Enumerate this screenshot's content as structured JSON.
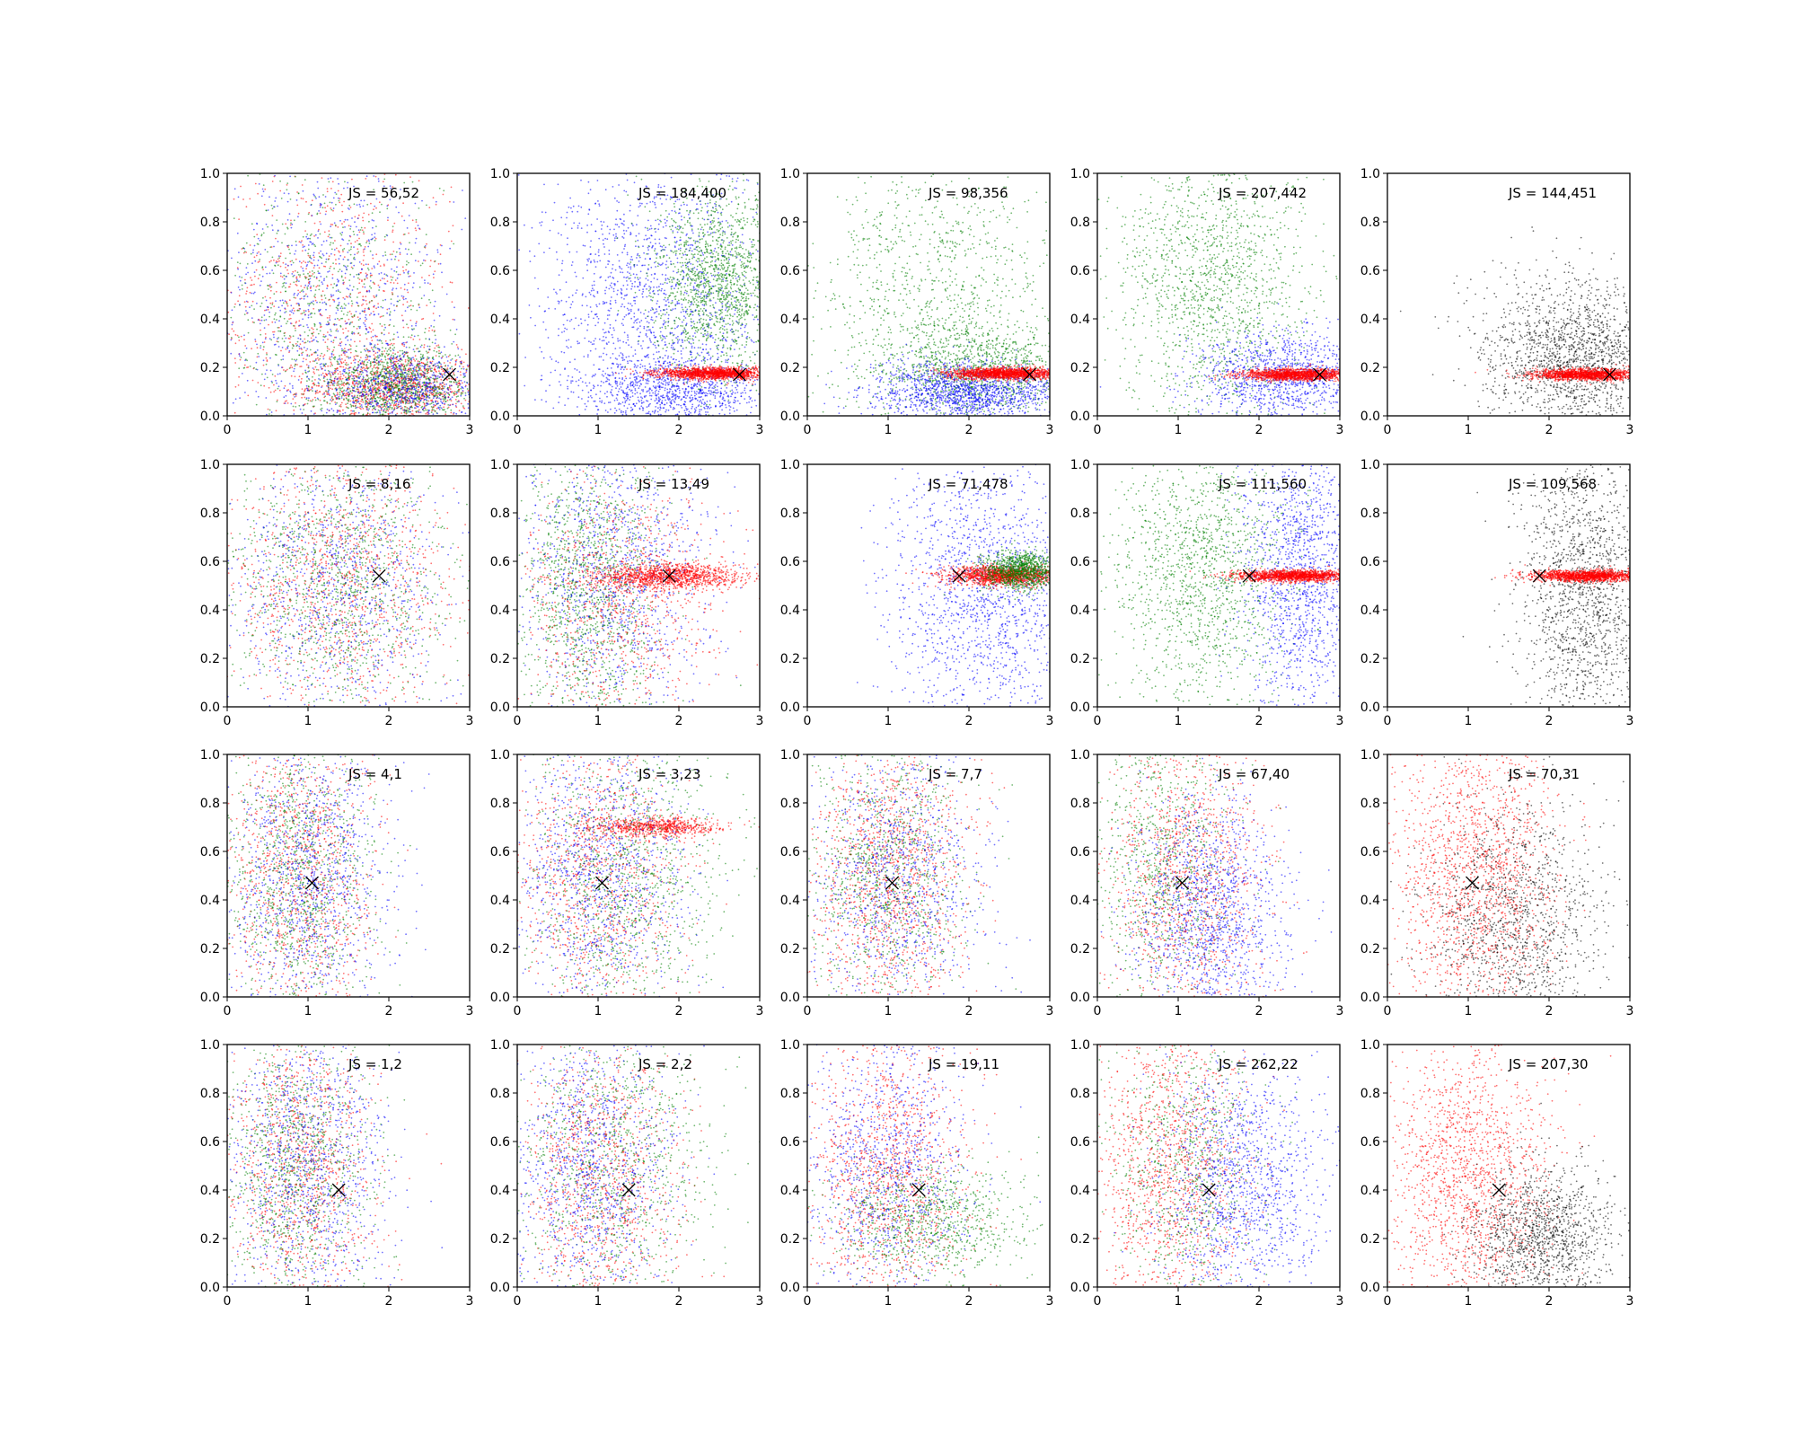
{
  "figure": {
    "rows": 4,
    "cols": 5,
    "xlim": [
      0,
      3
    ],
    "ylim": [
      0,
      1
    ],
    "xticks": [
      "0",
      "1",
      "2",
      "3"
    ],
    "yticks": [
      "0.0",
      "0.2",
      "0.4",
      "0.6",
      "0.8",
      "1.0"
    ],
    "colors": {
      "red": "#ff0000",
      "green": "#008000",
      "blue": "#0000ff",
      "black": "#000000",
      "marker": "#000000",
      "axis": "#000000"
    }
  },
  "chart_data": [
    {
      "type": "scatter",
      "row": 0,
      "col": 0,
      "annotation": "JS = 56,52",
      "marker": {
        "x": 2.75,
        "y": 0.17
      },
      "clouds": [
        {
          "color": "red",
          "n": 1100,
          "cx": 2.1,
          "cy": 0.12,
          "sx": 0.55,
          "sy": 0.07
        },
        {
          "color": "red",
          "n": 900,
          "cx": 1.3,
          "cy": 0.45,
          "sx": 0.75,
          "sy": 0.32
        },
        {
          "color": "green",
          "n": 1100,
          "cx": 2.1,
          "cy": 0.12,
          "sx": 0.5,
          "sy": 0.08
        },
        {
          "color": "green",
          "n": 700,
          "cx": 1.2,
          "cy": 0.45,
          "sx": 0.7,
          "sy": 0.3
        },
        {
          "color": "blue",
          "n": 900,
          "cx": 1.3,
          "cy": 0.45,
          "sx": 0.75,
          "sy": 0.32
        },
        {
          "color": "blue",
          "n": 700,
          "cx": 2.2,
          "cy": 0.12,
          "sx": 0.5,
          "sy": 0.08
        }
      ]
    },
    {
      "type": "scatter",
      "row": 0,
      "col": 1,
      "annotation": "JS = 184,400",
      "marker": {
        "x": 2.75,
        "y": 0.17
      },
      "clouds": [
        {
          "color": "blue",
          "n": 1600,
          "cx": 1.7,
          "cy": 0.45,
          "sx": 0.7,
          "sy": 0.3
        },
        {
          "color": "blue",
          "n": 900,
          "cx": 2.0,
          "cy": 0.1,
          "sx": 0.6,
          "sy": 0.07
        },
        {
          "color": "green",
          "n": 1500,
          "cx": 2.5,
          "cy": 0.55,
          "sx": 0.4,
          "sy": 0.18
        },
        {
          "color": "red",
          "n": 1600,
          "cx": 2.45,
          "cy": 0.175,
          "sx": 0.35,
          "sy": 0.012
        }
      ]
    },
    {
      "type": "scatter",
      "row": 0,
      "col": 2,
      "annotation": "JS = 98,356",
      "marker": {
        "x": 2.75,
        "y": 0.17
      },
      "clouds": [
        {
          "color": "green",
          "n": 1100,
          "cx": 1.6,
          "cy": 0.5,
          "sx": 0.8,
          "sy": 0.3
        },
        {
          "color": "green",
          "n": 1000,
          "cx": 2.1,
          "cy": 0.18,
          "sx": 0.6,
          "sy": 0.1
        },
        {
          "color": "blue",
          "n": 1500,
          "cx": 2.0,
          "cy": 0.1,
          "sx": 0.6,
          "sy": 0.06
        },
        {
          "color": "red",
          "n": 1600,
          "cx": 2.45,
          "cy": 0.175,
          "sx": 0.35,
          "sy": 0.012
        }
      ]
    },
    {
      "type": "scatter",
      "row": 0,
      "col": 3,
      "annotation": "JS = 207,442",
      "marker": {
        "x": 2.75,
        "y": 0.17
      },
      "clouds": [
        {
          "color": "green",
          "n": 1500,
          "cx": 1.4,
          "cy": 0.55,
          "sx": 0.6,
          "sy": 0.3
        },
        {
          "color": "blue",
          "n": 1200,
          "cx": 2.3,
          "cy": 0.15,
          "sx": 0.55,
          "sy": 0.1
        },
        {
          "color": "red",
          "n": 1500,
          "cx": 2.45,
          "cy": 0.17,
          "sx": 0.33,
          "sy": 0.012
        }
      ]
    },
    {
      "type": "scatter",
      "row": 0,
      "col": 4,
      "annotation": "JS = 144,451",
      "marker": {
        "x": 2.75,
        "y": 0.17
      },
      "clouds": [
        {
          "color": "black",
          "n": 1700,
          "cx": 2.3,
          "cy": 0.25,
          "sx": 0.55,
          "sy": 0.16
        },
        {
          "color": "red",
          "n": 1500,
          "cx": 2.45,
          "cy": 0.17,
          "sx": 0.33,
          "sy": 0.012
        }
      ]
    },
    {
      "type": "scatter",
      "row": 1,
      "col": 0,
      "annotation": "JS = 8,16",
      "marker": {
        "x": 1.88,
        "y": 0.54
      },
      "clouds": [
        {
          "color": "red",
          "n": 1200,
          "cx": 1.4,
          "cy": 0.5,
          "sx": 0.7,
          "sy": 0.28
        },
        {
          "color": "green",
          "n": 1200,
          "cx": 1.4,
          "cy": 0.5,
          "sx": 0.7,
          "sy": 0.28
        },
        {
          "color": "blue",
          "n": 1000,
          "cx": 1.3,
          "cy": 0.5,
          "sx": 0.7,
          "sy": 0.3
        }
      ]
    },
    {
      "type": "scatter",
      "row": 1,
      "col": 1,
      "annotation": "JS = 13,49",
      "marker": {
        "x": 1.88,
        "y": 0.54
      },
      "clouds": [
        {
          "color": "green",
          "n": 1400,
          "cx": 0.9,
          "cy": 0.5,
          "sx": 0.45,
          "sy": 0.32
        },
        {
          "color": "blue",
          "n": 1200,
          "cx": 1.2,
          "cy": 0.55,
          "sx": 0.6,
          "sy": 0.3
        },
        {
          "color": "red",
          "n": 900,
          "cx": 1.3,
          "cy": 0.45,
          "sx": 0.6,
          "sy": 0.25
        },
        {
          "color": "red",
          "n": 1200,
          "cx": 1.9,
          "cy": 0.54,
          "sx": 0.45,
          "sy": 0.025
        }
      ]
    },
    {
      "type": "scatter",
      "row": 1,
      "col": 2,
      "annotation": "JS = 71,478",
      "marker": {
        "x": 1.88,
        "y": 0.54
      },
      "clouds": [
        {
          "color": "blue",
          "n": 1600,
          "cx": 2.2,
          "cy": 0.45,
          "sx": 0.6,
          "sy": 0.3
        },
        {
          "color": "red",
          "n": 1400,
          "cx": 2.4,
          "cy": 0.54,
          "sx": 0.35,
          "sy": 0.02
        },
        {
          "color": "green",
          "n": 1100,
          "cx": 2.65,
          "cy": 0.56,
          "sx": 0.25,
          "sy": 0.04
        }
      ]
    },
    {
      "type": "scatter",
      "row": 1,
      "col": 3,
      "annotation": "JS = 111,560",
      "marker": {
        "x": 1.88,
        "y": 0.54
      },
      "clouds": [
        {
          "color": "green",
          "n": 1500,
          "cx": 1.3,
          "cy": 0.55,
          "sx": 0.55,
          "sy": 0.3
        },
        {
          "color": "blue",
          "n": 1400,
          "cx": 2.5,
          "cy": 0.55,
          "sx": 0.35,
          "sy": 0.3
        },
        {
          "color": "red",
          "n": 1500,
          "cx": 2.45,
          "cy": 0.54,
          "sx": 0.35,
          "sy": 0.012
        }
      ]
    },
    {
      "type": "scatter",
      "row": 1,
      "col": 4,
      "annotation": "JS = 109,568",
      "marker": {
        "x": 1.88,
        "y": 0.54
      },
      "clouds": [
        {
          "color": "black",
          "n": 1600,
          "cx": 2.45,
          "cy": 0.45,
          "sx": 0.4,
          "sy": 0.3
        },
        {
          "color": "red",
          "n": 1500,
          "cx": 2.45,
          "cy": 0.54,
          "sx": 0.35,
          "sy": 0.012
        }
      ]
    },
    {
      "type": "scatter",
      "row": 2,
      "col": 0,
      "annotation": "JS = 4,1",
      "marker": {
        "x": 1.05,
        "y": 0.47
      },
      "clouds": [
        {
          "color": "red",
          "n": 1100,
          "cx": 0.9,
          "cy": 0.5,
          "sx": 0.45,
          "sy": 0.3
        },
        {
          "color": "green",
          "n": 1100,
          "cx": 0.9,
          "cy": 0.5,
          "sx": 0.45,
          "sy": 0.3
        },
        {
          "color": "blue",
          "n": 1100,
          "cx": 1.0,
          "cy": 0.5,
          "sx": 0.5,
          "sy": 0.3
        }
      ]
    },
    {
      "type": "scatter",
      "row": 2,
      "col": 1,
      "annotation": "JS = 3,23",
      "marker": {
        "x": 1.05,
        "y": 0.47
      },
      "clouds": [
        {
          "color": "red",
          "n": 1000,
          "cx": 1.0,
          "cy": 0.5,
          "sx": 0.5,
          "sy": 0.3
        },
        {
          "color": "red",
          "n": 700,
          "cx": 1.7,
          "cy": 0.7,
          "sx": 0.4,
          "sy": 0.02
        },
        {
          "color": "green",
          "n": 1100,
          "cx": 1.3,
          "cy": 0.5,
          "sx": 0.6,
          "sy": 0.3
        },
        {
          "color": "blue",
          "n": 1100,
          "cx": 1.0,
          "cy": 0.5,
          "sx": 0.55,
          "sy": 0.3
        }
      ]
    },
    {
      "type": "scatter",
      "row": 2,
      "col": 2,
      "annotation": "JS = 7,7",
      "marker": {
        "x": 1.05,
        "y": 0.47
      },
      "clouds": [
        {
          "color": "red",
          "n": 1300,
          "cx": 1.0,
          "cy": 0.5,
          "sx": 0.5,
          "sy": 0.3
        },
        {
          "color": "green",
          "n": 1000,
          "cx": 1.0,
          "cy": 0.5,
          "sx": 0.5,
          "sy": 0.3
        },
        {
          "color": "blue",
          "n": 1000,
          "cx": 1.1,
          "cy": 0.5,
          "sx": 0.55,
          "sy": 0.3
        }
      ]
    },
    {
      "type": "scatter",
      "row": 2,
      "col": 3,
      "annotation": "JS = 67,40",
      "marker": {
        "x": 1.05,
        "y": 0.47
      },
      "clouds": [
        {
          "color": "red",
          "n": 1200,
          "cx": 1.1,
          "cy": 0.5,
          "sx": 0.5,
          "sy": 0.3
        },
        {
          "color": "green",
          "n": 900,
          "cx": 0.8,
          "cy": 0.55,
          "sx": 0.45,
          "sy": 0.3
        },
        {
          "color": "blue",
          "n": 1300,
          "cx": 1.4,
          "cy": 0.35,
          "sx": 0.45,
          "sy": 0.25
        }
      ]
    },
    {
      "type": "scatter",
      "row": 2,
      "col": 4,
      "annotation": "JS = 70,31",
      "marker": {
        "x": 1.05,
        "y": 0.47
      },
      "clouds": [
        {
          "color": "red",
          "n": 1600,
          "cx": 1.1,
          "cy": 0.5,
          "sx": 0.5,
          "sy": 0.3
        },
        {
          "color": "black",
          "n": 1300,
          "cx": 1.6,
          "cy": 0.3,
          "sx": 0.55,
          "sy": 0.25
        }
      ]
    },
    {
      "type": "scatter",
      "row": 3,
      "col": 0,
      "annotation": "JS = 1,2",
      "marker": {
        "x": 1.38,
        "y": 0.4
      },
      "clouds": [
        {
          "color": "red",
          "n": 1100,
          "cx": 0.9,
          "cy": 0.5,
          "sx": 0.45,
          "sy": 0.3
        },
        {
          "color": "green",
          "n": 1100,
          "cx": 0.9,
          "cy": 0.5,
          "sx": 0.45,
          "sy": 0.3
        },
        {
          "color": "blue",
          "n": 1100,
          "cx": 1.0,
          "cy": 0.5,
          "sx": 0.5,
          "sy": 0.3
        }
      ]
    },
    {
      "type": "scatter",
      "row": 3,
      "col": 1,
      "annotation": "JS = 2,2",
      "marker": {
        "x": 1.38,
        "y": 0.4
      },
      "clouds": [
        {
          "color": "red",
          "n": 1100,
          "cx": 1.0,
          "cy": 0.45,
          "sx": 0.5,
          "sy": 0.3
        },
        {
          "color": "green",
          "n": 1000,
          "cx": 1.2,
          "cy": 0.5,
          "sx": 0.6,
          "sy": 0.3
        },
        {
          "color": "blue",
          "n": 1100,
          "cx": 0.9,
          "cy": 0.5,
          "sx": 0.5,
          "sy": 0.3
        }
      ]
    },
    {
      "type": "scatter",
      "row": 3,
      "col": 2,
      "annotation": "JS = 19,11",
      "marker": {
        "x": 1.38,
        "y": 0.4
      },
      "clouds": [
        {
          "color": "red",
          "n": 1300,
          "cx": 1.0,
          "cy": 0.45,
          "sx": 0.5,
          "sy": 0.3
        },
        {
          "color": "green",
          "n": 900,
          "cx": 1.5,
          "cy": 0.28,
          "sx": 0.6,
          "sy": 0.12
        },
        {
          "color": "blue",
          "n": 1000,
          "cx": 1.0,
          "cy": 0.5,
          "sx": 0.5,
          "sy": 0.3
        }
      ]
    },
    {
      "type": "scatter",
      "row": 3,
      "col": 3,
      "annotation": "JS = 262,22",
      "marker": {
        "x": 1.38,
        "y": 0.4
      },
      "clouds": [
        {
          "color": "red",
          "n": 1300,
          "cx": 0.9,
          "cy": 0.5,
          "sx": 0.5,
          "sy": 0.3
        },
        {
          "color": "green",
          "n": 800,
          "cx": 1.1,
          "cy": 0.5,
          "sx": 0.5,
          "sy": 0.3
        },
        {
          "color": "blue",
          "n": 1300,
          "cx": 1.8,
          "cy": 0.4,
          "sx": 0.5,
          "sy": 0.28
        }
      ]
    },
    {
      "type": "scatter",
      "row": 3,
      "col": 4,
      "annotation": "JS = 207,30",
      "marker": {
        "x": 1.38,
        "y": 0.4
      },
      "clouds": [
        {
          "color": "red",
          "n": 1600,
          "cx": 1.0,
          "cy": 0.45,
          "sx": 0.5,
          "sy": 0.3
        },
        {
          "color": "black",
          "n": 1300,
          "cx": 1.9,
          "cy": 0.2,
          "sx": 0.45,
          "sy": 0.15
        }
      ]
    }
  ]
}
